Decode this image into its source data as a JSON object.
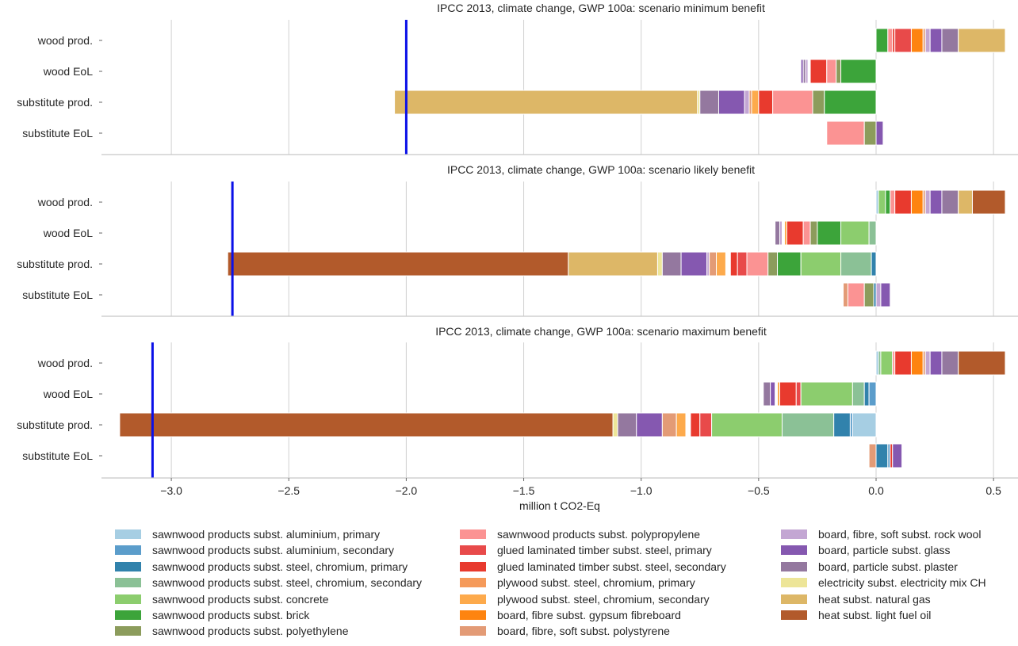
{
  "chart_data": {
    "type": "bar",
    "orientation": "horizontal",
    "stacked": true,
    "xlabel": "million t CO2-Eq",
    "xlim": [
      -3.3,
      0.6
    ],
    "xticks": [
      -3.0,
      -2.5,
      -2.0,
      -1.5,
      -1.0,
      -0.5,
      0.0,
      0.5
    ],
    "xtick_labels": [
      "−3.0",
      "−2.5",
      "−2.0",
      "−1.5",
      "−1.0",
      "−0.5",
      "0.0",
      "0.5"
    ],
    "grid": "vertical",
    "legend_position": "bottom",
    "categories": [
      "wood prod.",
      "wood EoL",
      "substitute prod.",
      "substitute EoL"
    ],
    "legend": [
      {
        "key": "al_p",
        "name": "sawnwood products subst. aluminium, primary",
        "color": "#a6cee3"
      },
      {
        "key": "al_s",
        "name": "sawnwood products subst. aluminium, secondary",
        "color": "#5b9dcb"
      },
      {
        "key": "st_p",
        "name": "sawnwood products subst. steel, chromium, primary",
        "color": "#3182ac"
      },
      {
        "key": "st_s",
        "name": "sawnwood products subst. steel, chromium, secondary",
        "color": "#8bc196"
      },
      {
        "key": "conc",
        "name": "sawnwood products subst. concrete",
        "color": "#8ccd6e"
      },
      {
        "key": "brick",
        "name": "sawnwood products subst. brick",
        "color": "#3ca43a"
      },
      {
        "key": "pe",
        "name": "sawnwood products subst. polyethylene",
        "color": "#8c9c5c"
      },
      {
        "key": "pp",
        "name": "sawnwood products subst. polypropylene",
        "color": "#fb9393"
      },
      {
        "key": "glt_p",
        "name": "glued laminated timber subst. steel, primary",
        "color": "#e84a4a"
      },
      {
        "key": "glt_s",
        "name": "glued laminated timber subst. steel, secondary",
        "color": "#e83a2e"
      },
      {
        "key": "ply_p",
        "name": "plywood subst. steel, chromium, primary",
        "color": "#f59a5a"
      },
      {
        "key": "ply_s",
        "name": "plywood subst. steel, chromium, secondary",
        "color": "#fdaa4c"
      },
      {
        "key": "gyp",
        "name": "board, fibre subst. gypsum fibreboard",
        "color": "#fe8410"
      },
      {
        "key": "ps",
        "name": "board, fibre, soft subst. polystyrene",
        "color": "#e39b76"
      },
      {
        "key": "rock",
        "name": "board, fibre, soft subst. rock wool",
        "color": "#c3a6d3"
      },
      {
        "key": "glass",
        "name": "board, particle subst. glass",
        "color": "#8558b0"
      },
      {
        "key": "plas",
        "name": "board, particle subst. plaster",
        "color": "#94789f"
      },
      {
        "key": "elec",
        "name": "electricity subst. electricity mix CH",
        "color": "#ede598"
      },
      {
        "key": "gas",
        "name": "heat subst. natural gas",
        "color": "#ddb767"
      },
      {
        "key": "oil",
        "name": "heat subst. light fuel oil",
        "color": "#b25a2b"
      }
    ],
    "panels": [
      {
        "title": "IPCC 2013, climate change, GWP 100a: scenario minimum benefit",
        "reference_line": -2.0,
        "rows": [
          {
            "category": "wood prod.",
            "segments": [
              [
                "brick",
                0.0,
                0.05
              ],
              [
                "pp",
                0.05,
                0.07
              ],
              [
                "glt_s",
                0.07,
                0.08
              ],
              [
                "glt_p",
                0.08,
                0.15
              ],
              [
                "gyp",
                0.15,
                0.2
              ],
              [
                "ps",
                0.2,
                0.21
              ],
              [
                "rock",
                0.21,
                0.23
              ],
              [
                "glass",
                0.23,
                0.28
              ],
              [
                "plas",
                0.28,
                0.35
              ],
              [
                "gas",
                0.35,
                0.55
              ]
            ]
          },
          {
            "category": "wood EoL",
            "segments": [
              [
                "glass",
                -0.32,
                -0.31
              ],
              [
                "plas",
                -0.31,
                -0.3
              ],
              [
                "rock",
                -0.3,
                -0.29
              ],
              [
                "glt_s",
                -0.28,
                -0.21
              ],
              [
                "pp",
                -0.21,
                -0.17
              ],
              [
                "pe",
                -0.17,
                -0.15
              ],
              [
                "brick",
                -0.15,
                0.0
              ]
            ]
          },
          {
            "category": "substitute prod.",
            "segments": [
              [
                "gas",
                -2.05,
                -0.76
              ],
              [
                "elec",
                -0.76,
                -0.75
              ],
              [
                "plas",
                -0.75,
                -0.67
              ],
              [
                "glass",
                -0.67,
                -0.56
              ],
              [
                "rock",
                -0.56,
                -0.54
              ],
              [
                "ps",
                -0.54,
                -0.53
              ],
              [
                "ply_s",
                -0.53,
                -0.5
              ],
              [
                "glt_s",
                -0.5,
                -0.44
              ],
              [
                "pp",
                -0.44,
                -0.27
              ],
              [
                "pe",
                -0.27,
                -0.22
              ],
              [
                "brick",
                -0.22,
                0.0
              ]
            ]
          },
          {
            "category": "substitute EoL",
            "segments": [
              [
                "pp",
                -0.21,
                -0.05
              ],
              [
                "pe",
                -0.05,
                0.0
              ],
              [
                "glass",
                0.0,
                0.03
              ]
            ]
          }
        ]
      },
      {
        "title": "IPCC 2013, climate change, GWP 100a: scenario likely benefit",
        "reference_line": -2.74,
        "rows": [
          {
            "category": "wood prod.",
            "segments": [
              [
                "al_p",
                0.0,
                0.01
              ],
              [
                "conc",
                0.01,
                0.04
              ],
              [
                "brick",
                0.04,
                0.06
              ],
              [
                "pp",
                0.06,
                0.08
              ],
              [
                "glt_s",
                0.08,
                0.15
              ],
              [
                "gyp",
                0.15,
                0.2
              ],
              [
                "ps",
                0.2,
                0.21
              ],
              [
                "rock",
                0.21,
                0.23
              ],
              [
                "glass",
                0.23,
                0.28
              ],
              [
                "plas",
                0.28,
                0.35
              ],
              [
                "gas",
                0.35,
                0.41
              ],
              [
                "oil",
                0.41,
                0.55
              ]
            ]
          },
          {
            "category": "wood EoL",
            "segments": [
              [
                "plas",
                -0.43,
                -0.41
              ],
              [
                "rock",
                -0.41,
                -0.4
              ],
              [
                "ply_s",
                -0.39,
                -0.38
              ],
              [
                "glt_s",
                -0.38,
                -0.31
              ],
              [
                "pp",
                -0.31,
                -0.28
              ],
              [
                "pe",
                -0.28,
                -0.25
              ],
              [
                "brick",
                -0.25,
                -0.15
              ],
              [
                "conc",
                -0.15,
                -0.03
              ],
              [
                "st_s",
                -0.03,
                0.0
              ]
            ]
          },
          {
            "category": "substitute prod.",
            "segments": [
              [
                "oil",
                -2.76,
                -1.31
              ],
              [
                "gas",
                -1.31,
                -0.93
              ],
              [
                "elec",
                -0.93,
                -0.91
              ],
              [
                "plas",
                -0.91,
                -0.83
              ],
              [
                "glass",
                -0.83,
                -0.72
              ],
              [
                "rock",
                -0.72,
                -0.71
              ],
              [
                "ps",
                -0.71,
                -0.68
              ],
              [
                "ply_s",
                -0.68,
                -0.64
              ],
              [
                "glt_s",
                -0.62,
                -0.59
              ],
              [
                "glt_p",
                -0.59,
                -0.55
              ],
              [
                "pp",
                -0.55,
                -0.46
              ],
              [
                "pe",
                -0.46,
                -0.42
              ],
              [
                "brick",
                -0.42,
                -0.32
              ],
              [
                "conc",
                -0.32,
                -0.15
              ],
              [
                "st_s",
                -0.15,
                -0.02
              ],
              [
                "st_p",
                -0.02,
                0.0
              ]
            ]
          },
          {
            "category": "substitute EoL",
            "segments": [
              [
                "ps",
                -0.14,
                -0.12
              ],
              [
                "pp",
                -0.12,
                -0.05
              ],
              [
                "pe",
                -0.05,
                -0.01
              ],
              [
                "st_p",
                -0.01,
                0.0
              ],
              [
                "rock",
                0.0,
                0.02
              ],
              [
                "glass",
                0.02,
                0.06
              ]
            ]
          }
        ]
      },
      {
        "title": "IPCC 2013, climate change, GWP 100a: scenario maximum benefit",
        "reference_line": -3.08,
        "rows": [
          {
            "category": "wood prod.",
            "segments": [
              [
                "al_p",
                0.0,
                0.01
              ],
              [
                "st_s",
                0.01,
                0.02
              ],
              [
                "conc",
                0.02,
                0.07
              ],
              [
                "pp",
                0.07,
                0.08
              ],
              [
                "glt_s",
                0.08,
                0.15
              ],
              [
                "gyp",
                0.15,
                0.2
              ],
              [
                "ps",
                0.2,
                0.21
              ],
              [
                "rock",
                0.21,
                0.23
              ],
              [
                "glass",
                0.23,
                0.28
              ],
              [
                "plas",
                0.28,
                0.35
              ],
              [
                "oil",
                0.35,
                0.55
              ]
            ]
          },
          {
            "category": "wood EoL",
            "segments": [
              [
                "plas",
                -0.48,
                -0.45
              ],
              [
                "glass",
                -0.45,
                -0.43
              ],
              [
                "ply_s",
                -0.42,
                -0.41
              ],
              [
                "glt_s",
                -0.41,
                -0.34
              ],
              [
                "glt_p",
                -0.34,
                -0.32
              ],
              [
                "conc",
                -0.32,
                -0.1
              ],
              [
                "st_s",
                -0.1,
                -0.05
              ],
              [
                "st_p",
                -0.05,
                -0.03
              ],
              [
                "al_s",
                -0.03,
                0.0
              ]
            ]
          },
          {
            "category": "substitute prod.",
            "segments": [
              [
                "oil",
                -3.22,
                -1.12
              ],
              [
                "elec",
                -1.12,
                -1.1
              ],
              [
                "plas",
                -1.1,
                -1.02
              ],
              [
                "glass",
                -1.02,
                -0.91
              ],
              [
                "ps",
                -0.91,
                -0.85
              ],
              [
                "ply_s",
                -0.85,
                -0.81
              ],
              [
                "glt_s",
                -0.79,
                -0.75
              ],
              [
                "glt_p",
                -0.75,
                -0.7
              ],
              [
                "conc",
                -0.7,
                -0.4
              ],
              [
                "st_s",
                -0.4,
                -0.18
              ],
              [
                "st_p",
                -0.18,
                -0.11
              ],
              [
                "al_s",
                -0.11,
                -0.1
              ],
              [
                "al_p",
                -0.1,
                0.0
              ]
            ]
          },
          {
            "category": "substitute EoL",
            "segments": [
              [
                "ps",
                -0.03,
                0.0
              ],
              [
                "st_p",
                0.0,
                0.05
              ],
              [
                "al_s",
                0.05,
                0.06
              ],
              [
                "glt_s",
                0.06,
                0.07
              ],
              [
                "glass",
                0.07,
                0.11
              ]
            ]
          }
        ]
      }
    ]
  }
}
